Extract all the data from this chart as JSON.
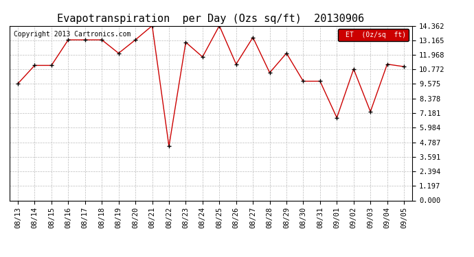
{
  "title": "Evapotranspiration  per Day (Ozs sq/ft)  20130906",
  "copyright": "Copyright 2013 Cartronics.com",
  "legend_label": "ET  (0z/sq  ft)",
  "x_labels": [
    "08/13",
    "08/14",
    "08/15",
    "08/16",
    "08/17",
    "08/18",
    "08/19",
    "08/20",
    "08/21",
    "08/22",
    "08/23",
    "08/24",
    "08/25",
    "08/26",
    "08/27",
    "08/28",
    "08/29",
    "08/30",
    "08/31",
    "09/01",
    "09/02",
    "09/03",
    "09/04",
    "09/05"
  ],
  "y_values": [
    9.6,
    11.1,
    11.1,
    13.2,
    13.2,
    13.2,
    12.1,
    13.2,
    14.36,
    4.45,
    13.0,
    11.8,
    14.36,
    11.2,
    13.4,
    10.5,
    12.1,
    9.8,
    9.8,
    6.8,
    10.8,
    7.3,
    11.2,
    11.0
  ],
  "line_color": "#cc0000",
  "marker_color": "#000000",
  "background_color": "#ffffff",
  "grid_color": "#bbbbbb",
  "ylim": [
    0,
    14.362
  ],
  "yticks": [
    0.0,
    1.197,
    2.394,
    3.591,
    4.787,
    5.984,
    7.181,
    8.378,
    9.575,
    10.772,
    11.968,
    13.165,
    14.362
  ],
  "legend_bg": "#cc0000",
  "legend_text_color": "#ffffff",
  "title_fontsize": 11,
  "copyright_fontsize": 7,
  "tick_fontsize": 7.5,
  "ytick_fontsize": 7.5
}
